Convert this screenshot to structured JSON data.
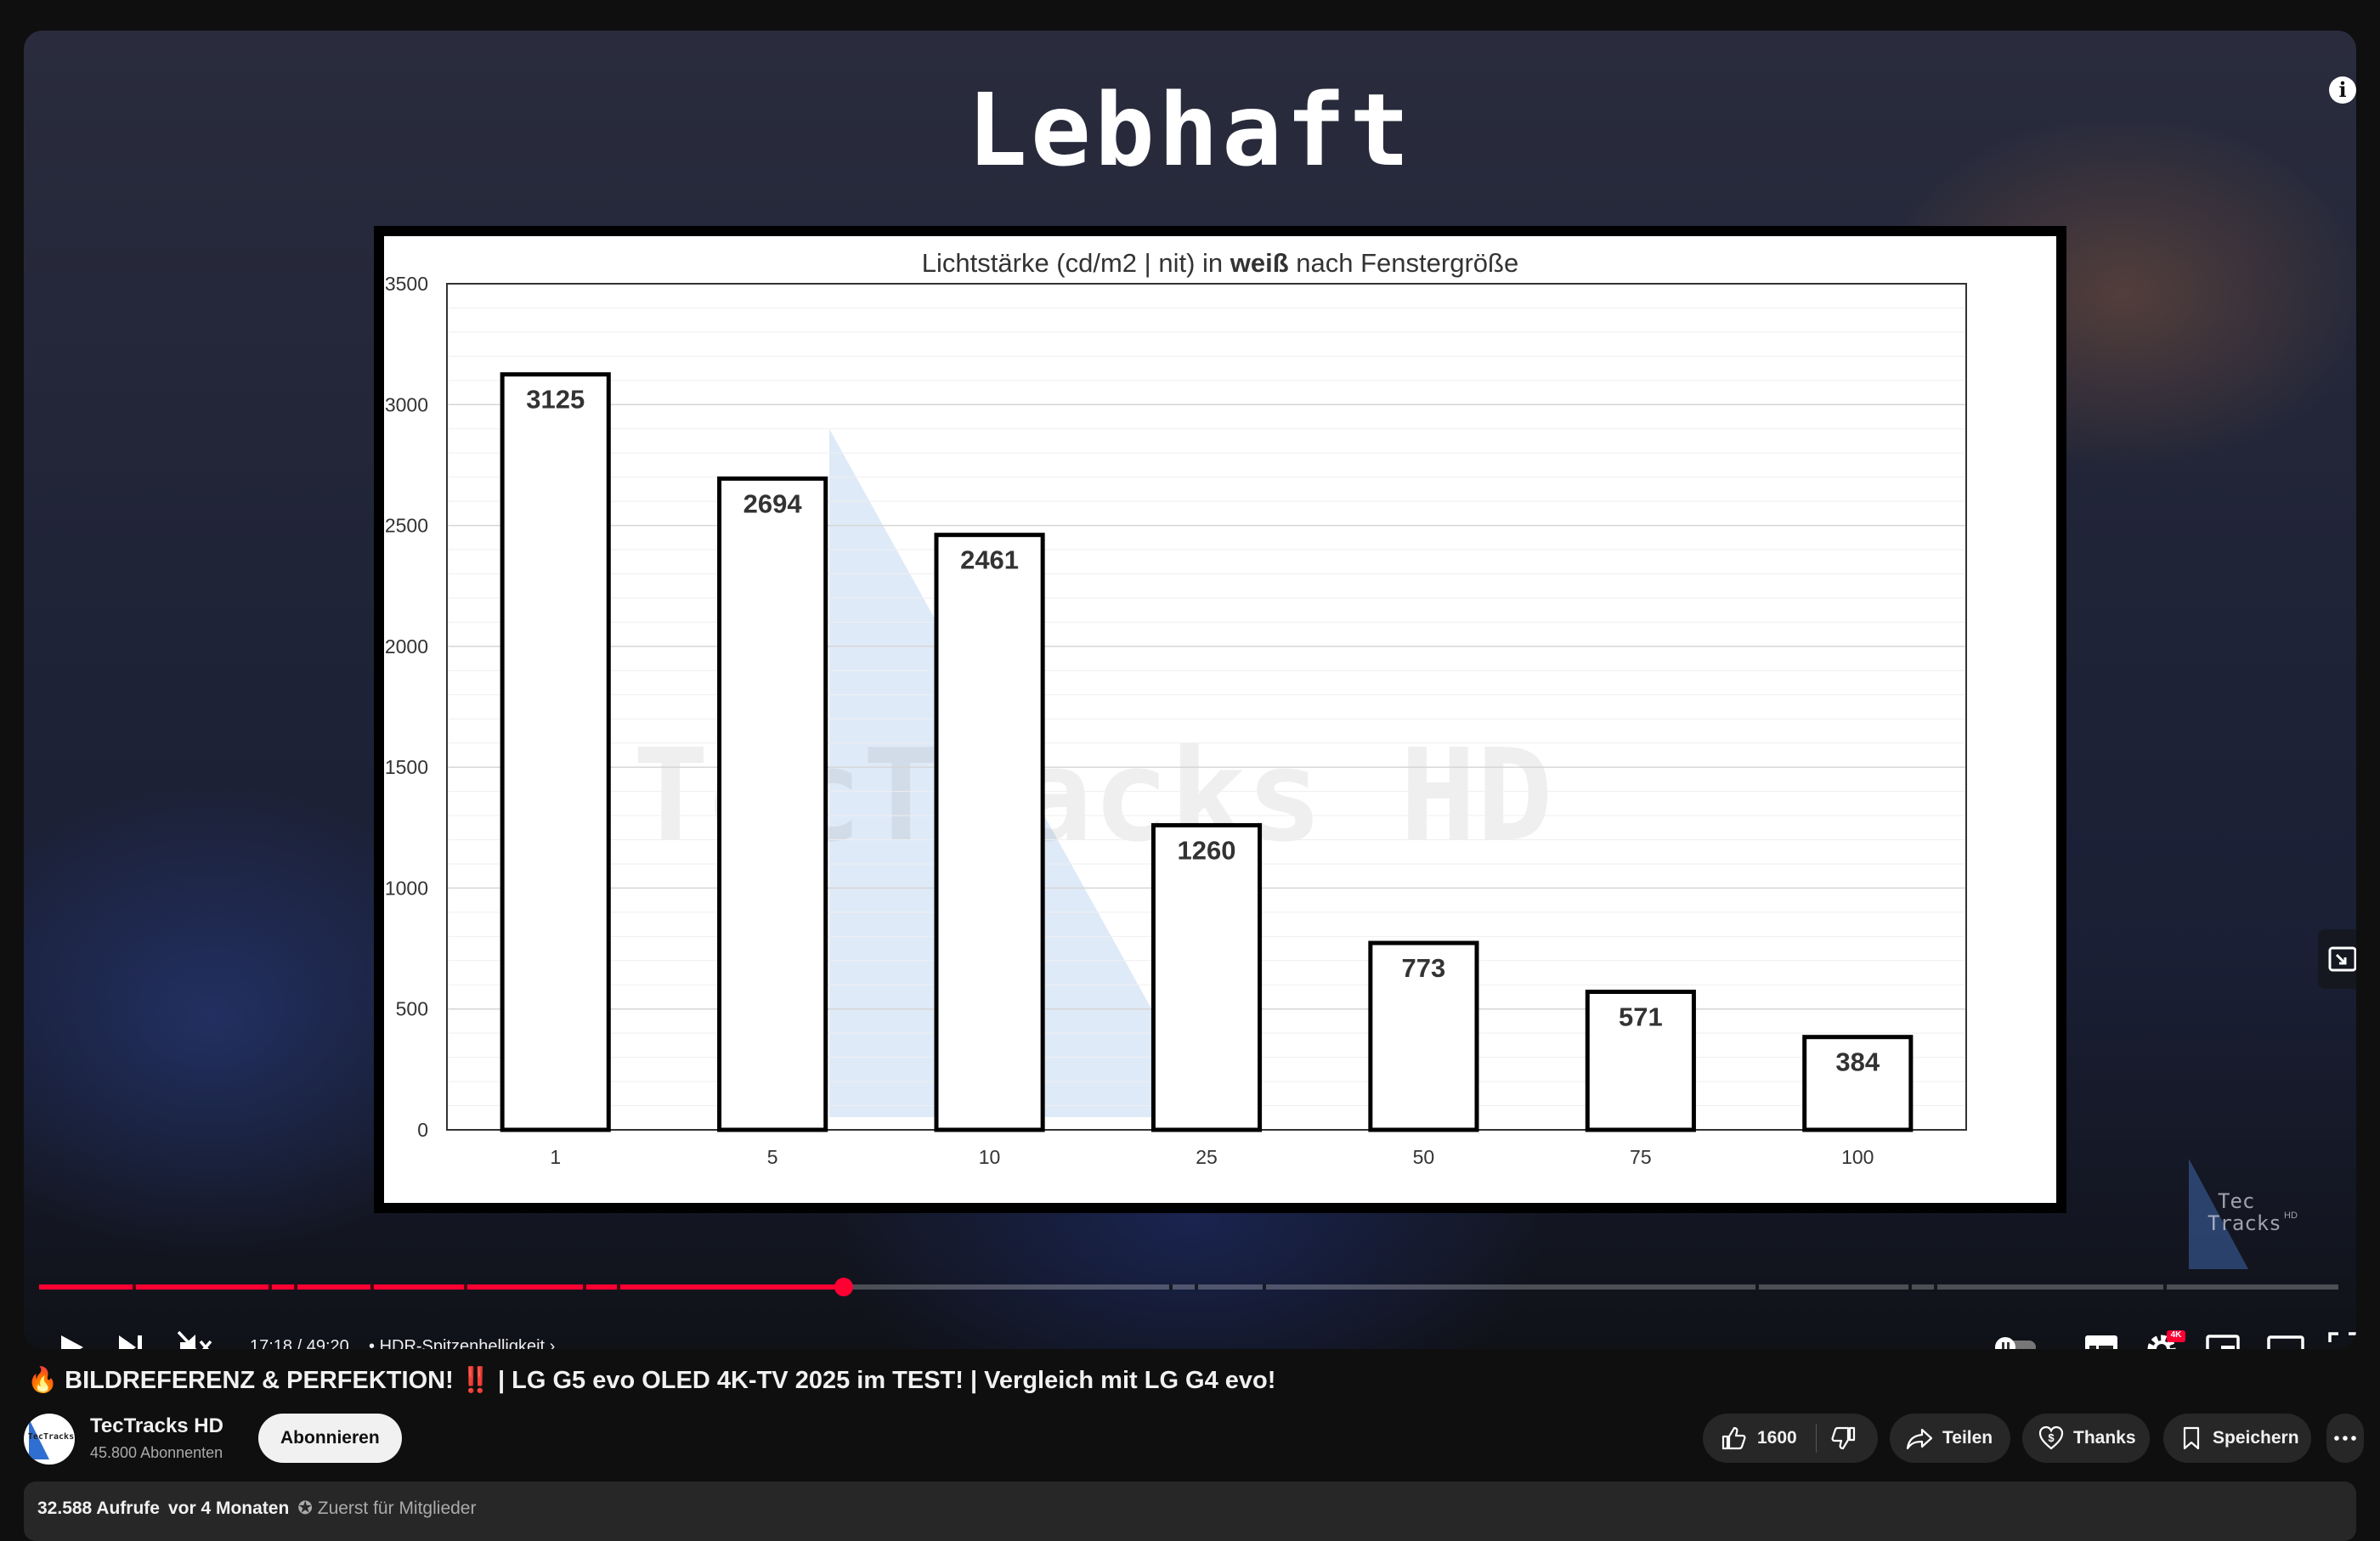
{
  "video_overlay_title": "Lebhaft",
  "player": {
    "current_time": "17:18",
    "duration": "49:20",
    "time_separator": " / ",
    "chapter": "HDR-Spitzenhelligkeit",
    "progress_fraction": 0.35,
    "settings_badge": "4K",
    "icons": {
      "play": "play-icon",
      "next": "next-icon",
      "mute": "volume-muted-icon",
      "info": "info-icon",
      "autoplay": "autoplay-toggle",
      "subtitles": "subtitles-icon",
      "settings": "gear-icon",
      "miniplayer": "miniplayer-icon",
      "theater": "theater-icon",
      "fullscreen": "fullscreen-icon"
    }
  },
  "chart_data": {
    "type": "bar",
    "title_prefix": "Lichtstärke (cd/m2 | nit)  in ",
    "title_bold": "weiß",
    "title_suffix": " nach Fenstergröße",
    "categories": [
      "1",
      "5",
      "10",
      "25",
      "50",
      "75",
      "100"
    ],
    "values": [
      3125,
      2694,
      2461,
      1260,
      773,
      571,
      384
    ],
    "ylim": [
      0,
      3500
    ],
    "yticks": [
      0,
      500,
      1000,
      1500,
      2000,
      2500,
      3000,
      3500
    ],
    "grid": true,
    "legend": "none",
    "xlabel": "",
    "ylabel": "",
    "bar_fill": "#ffffff",
    "bar_stroke": "#000000",
    "watermark": "TecTracks HD"
  },
  "video": {
    "title_emoji_left": "🔥",
    "title_main": "BILDREFERENZ & PERFEKTION!",
    "title_emoji_mid": "‼️",
    "title_rest": " | LG G5 evo OLED 4K-TV 2025 im TEST! | Vergleich mit LG G4 evo!"
  },
  "channel": {
    "name": "TecTracks HD",
    "subscribers": "45.800 Abonnenten",
    "avatar_text": "TecTracks",
    "subscribe_label": "Abonnieren"
  },
  "actions": {
    "likes": "1600",
    "share": "Teilen",
    "thanks": "Thanks",
    "save": "Speichern"
  },
  "description": {
    "views": "32.588 Aufrufe",
    "ago": "vor 4 Monaten",
    "members": "Zuerst für Mitglieder"
  },
  "colors": {
    "accent": "#ff0033",
    "background": "#0f0f0f",
    "pill": "#272727"
  }
}
